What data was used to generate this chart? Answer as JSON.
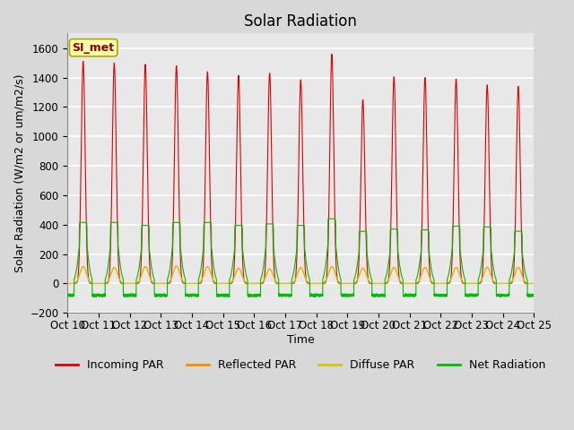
{
  "title": "Solar Radiation",
  "ylabel": "Solar Radiation (W/m2 or um/m2/s)",
  "xlabel": "Time",
  "ylim": [
    -200,
    1700
  ],
  "yticks": [
    -200,
    0,
    200,
    400,
    600,
    800,
    1000,
    1200,
    1400,
    1600
  ],
  "xtick_labels": [
    "Oct 10",
    "Oct 11",
    "Oct 12",
    "Oct 13",
    "Oct 14",
    "Oct 15",
    "Oct 16",
    "Oct 17",
    "Oct 18",
    "Oct 19",
    "Oct 20",
    "Oct 21",
    "Oct 22",
    "Oct 23",
    "Oct 24",
    "Oct 25"
  ],
  "annotation_text": "SI_met",
  "annotation_bg": "#ffffaa",
  "annotation_border": "#aaaa00",
  "line_colors": {
    "incoming": "#dd0000",
    "reflected": "#ff8800",
    "diffuse": "#cccc00",
    "net": "#00bb00"
  },
  "legend_labels": [
    "Incoming PAR",
    "Reflected PAR",
    "Diffuse PAR",
    "Net Radiation"
  ],
  "background_color": "#d8d8d8",
  "plot_bg": "#e8e8e8",
  "grid_color": "#ffffff",
  "n_days": 15,
  "incoming_peaks": [
    1510,
    1500,
    1490,
    1480,
    1440,
    1415,
    1430,
    1385,
    1560,
    1250,
    1405,
    1400,
    1390,
    1350,
    1340
  ],
  "net_peaks": [
    415,
    415,
    395,
    415,
    415,
    395,
    405,
    395,
    440,
    355,
    370,
    365,
    390,
    385,
    355
  ],
  "reflected_peaks": [
    115,
    110,
    115,
    120,
    115,
    105,
    100,
    110,
    115,
    105,
    110,
    110,
    110,
    110,
    110
  ],
  "night_net": -80,
  "title_fontsize": 12,
  "label_fontsize": 9,
  "tick_fontsize": 8.5
}
